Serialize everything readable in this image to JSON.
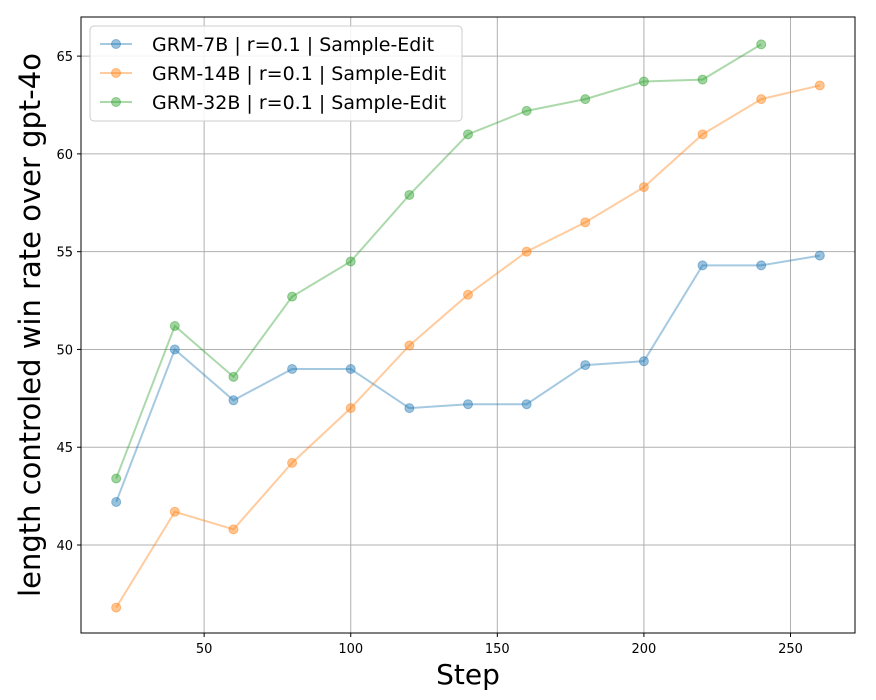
{
  "chart_data": {
    "type": "line",
    "xlabel": "Step",
    "ylabel": "length controled win rate over gpt-4o",
    "xlim": [
      8,
      272
    ],
    "ylim": [
      35.5,
      67
    ],
    "xticks": [
      50,
      100,
      150,
      200,
      250
    ],
    "yticks": [
      40,
      45,
      50,
      55,
      60,
      65
    ],
    "grid": true,
    "legend_position": "top-left",
    "series": [
      {
        "name": "GRM-7B | r=0.1 | Sample-Edit",
        "color": "#1f77b4",
        "x": [
          20,
          40,
          60,
          80,
          100,
          120,
          140,
          160,
          180,
          200,
          220,
          240,
          260
        ],
        "y": [
          42.2,
          50.0,
          47.4,
          49.0,
          49.0,
          47.0,
          47.2,
          47.2,
          49.2,
          49.4,
          54.3,
          54.3,
          54.8
        ]
      },
      {
        "name": "GRM-14B | r=0.1 | Sample-Edit",
        "color": "#ff7f0e",
        "x": [
          20,
          40,
          60,
          80,
          100,
          120,
          140,
          160,
          180,
          200,
          220,
          240,
          260
        ],
        "y": [
          36.8,
          41.7,
          40.8,
          44.2,
          47.0,
          50.2,
          52.8,
          55.0,
          56.5,
          58.3,
          61.0,
          62.8,
          63.5
        ]
      },
      {
        "name": "GRM-32B | r=0.1 | Sample-Edit",
        "color": "#2ca02c",
        "x": [
          20,
          40,
          60,
          80,
          100,
          120,
          140,
          160,
          180,
          200,
          220,
          240
        ],
        "y": [
          43.4,
          51.2,
          48.6,
          52.7,
          54.5,
          57.9,
          61.0,
          62.2,
          62.8,
          63.7,
          63.8,
          65.6
        ]
      }
    ]
  }
}
